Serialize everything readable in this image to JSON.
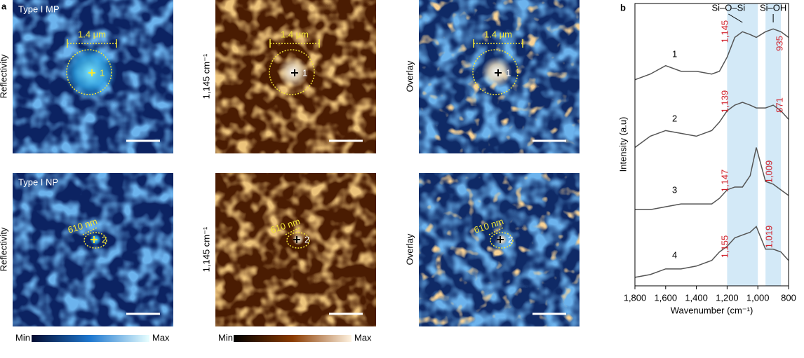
{
  "panel_a": {
    "label": "a",
    "rows": [
      {
        "title": "Type I MP",
        "scale": "1.4 μm",
        "point": "1"
      },
      {
        "title": "Type I NP",
        "scale": "610 nm",
        "point": "2"
      }
    ],
    "columns": [
      "Reflectivity",
      "1,145 cm⁻¹",
      "Overlay"
    ],
    "colorbars": [
      {
        "min": "Min",
        "max": "Max"
      },
      {
        "min": "Min",
        "max": "Max"
      }
    ]
  },
  "chart_data": {
    "type": "line",
    "label": "b",
    "xlabel": "Wavenumber (cm⁻¹)",
    "ylabel": "Intensity (a.u)",
    "x": [
      1800,
      1700,
      1600,
      1500,
      1400,
      1300,
      1250,
      1200,
      1150,
      1100,
      1050,
      1010,
      950,
      900,
      850,
      800
    ],
    "xlim": [
      1800,
      800
    ],
    "xticks": [
      {
        "value": 1800,
        "label": "1,800"
      },
      {
        "value": 1600,
        "label": "1,600"
      },
      {
        "value": 1400,
        "label": "1,400"
      },
      {
        "value": 1200,
        "label": "1,200"
      },
      {
        "value": 1000,
        "label": "1,000"
      },
      800
    ],
    "ylim": [
      0,
      100
    ],
    "series": [
      {
        "name": "1",
        "color": "#555555",
        "values": [
          73,
          75,
          78,
          76,
          76,
          75,
          76,
          81,
          88,
          90,
          89,
          88,
          90,
          91,
          90,
          88
        ],
        "peaks": [
          "1,145",
          "935"
        ]
      },
      {
        "name": "2",
        "color": "#555555",
        "values": [
          49,
          53,
          55,
          54,
          53,
          55,
          58,
          62,
          64,
          65,
          64,
          63,
          63,
          64,
          62,
          59
        ],
        "peaks": [
          "1,139",
          "871"
        ]
      },
      {
        "name": "3",
        "color": "#555555",
        "values": [
          27,
          27,
          28,
          29,
          29,
          29,
          31,
          34,
          35,
          35,
          39,
          49,
          37,
          36,
          34,
          32
        ],
        "peaks": [
          "1,147",
          "1,009"
        ]
      },
      {
        "name": "4",
        "color": "#555555",
        "values": [
          3,
          4,
          6,
          6,
          7,
          9,
          12,
          14,
          17,
          18,
          19,
          21,
          13,
          13,
          12,
          9
        ],
        "peaks": [
          "1,155",
          "1,019"
        ]
      }
    ],
    "bands": [
      {
        "name": "Si–O–Si",
        "range": [
          1200,
          1000
        ]
      },
      {
        "name": "Si–OH",
        "range": [
          950,
          850
        ]
      }
    ],
    "band_color": "#d3e9f7",
    "peak_color": "#d0202a"
  }
}
